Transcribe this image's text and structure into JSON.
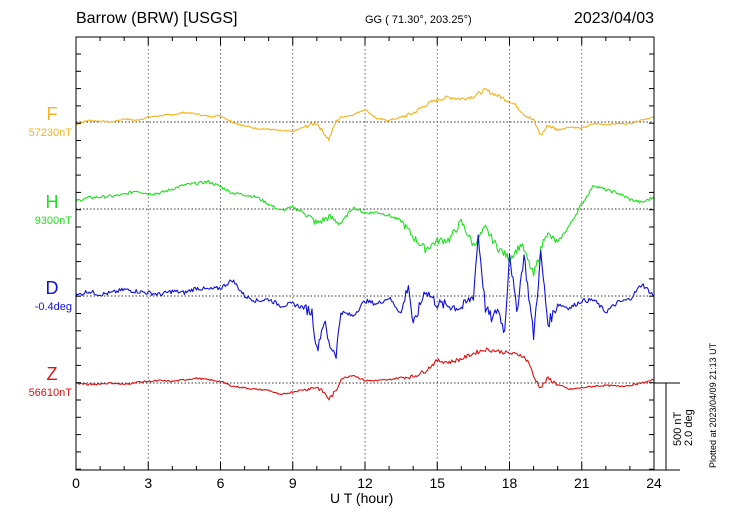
{
  "header": {
    "station": "Barrow (BRW)  [USGS]",
    "coords": "GG ( 71.30°, 203.25°)",
    "date": "2023/04/03"
  },
  "plotted_note": "Plotted at 2023/04/09 21:13 UT",
  "scale_bar": {
    "nT": "500 nT",
    "deg": "2.0 deg"
  },
  "chart_data": {
    "type": "line",
    "title": "Barrow (BRW)  [USGS]",
    "xlabel": "U T (hour)",
    "ylabel": "",
    "xlim": [
      0,
      24
    ],
    "x_ticks": [
      0,
      3,
      6,
      9,
      12,
      15,
      18,
      21,
      24
    ],
    "grid": true,
    "units": "nT",
    "series": [
      {
        "name": "F",
        "baseline_label": "57230nT",
        "color": "#f5b21c",
        "x": [
          0,
          0.5,
          1,
          1.5,
          2,
          2.5,
          3,
          3.5,
          4,
          4.5,
          5,
          5.5,
          6,
          6.5,
          7,
          7.5,
          8,
          8.5,
          9,
          9.5,
          10,
          10.3,
          10.5,
          10.8,
          11,
          11.5,
          12,
          12.5,
          13,
          13.5,
          14,
          14.5,
          15,
          15.5,
          16,
          16.5,
          17,
          17.5,
          18,
          18.3,
          18.6,
          19,
          19.3,
          19.6,
          20,
          20.5,
          21,
          21.5,
          22,
          22.5,
          23,
          23.5,
          24
        ],
        "y": [
          -30,
          20,
          10,
          0,
          40,
          20,
          60,
          80,
          90,
          120,
          100,
          70,
          80,
          0,
          -50,
          -80,
          -90,
          -110,
          -120,
          -60,
          -10,
          -140,
          -220,
          10,
          60,
          90,
          160,
          40,
          20,
          60,
          110,
          210,
          280,
          310,
          290,
          320,
          400,
          330,
          260,
          200,
          100,
          20,
          -170,
          -40,
          -100,
          -60,
          -80,
          -20,
          -30,
          -20,
          -20,
          30,
          60
        ]
      },
      {
        "name": "H",
        "baseline_label": "9300nT",
        "color": "#1de21d",
        "x": [
          0,
          0.5,
          1,
          1.5,
          2,
          2.5,
          3,
          3.5,
          4,
          4.5,
          5,
          5.5,
          6,
          6.5,
          7,
          7.5,
          8,
          8.5,
          9,
          9.5,
          10,
          10.5,
          11,
          11.5,
          12,
          12.5,
          13,
          13.5,
          14,
          14.5,
          15,
          15.5,
          16,
          16.5,
          17,
          17.5,
          18,
          18.5,
          19,
          19.5,
          20,
          20.5,
          21,
          21.5,
          22,
          22.5,
          23,
          23.5,
          24
        ],
        "y": [
          100,
          140,
          150,
          160,
          180,
          230,
          190,
          200,
          250,
          300,
          320,
          340,
          280,
          200,
          180,
          150,
          60,
          -20,
          20,
          -50,
          -180,
          -100,
          -180,
          20,
          -50,
          -40,
          -80,
          -150,
          -350,
          -500,
          -400,
          -380,
          -160,
          -450,
          -240,
          -480,
          -620,
          -440,
          -830,
          -300,
          -420,
          -200,
          60,
          300,
          240,
          200,
          120,
          80,
          150
        ]
      },
      {
        "name": "D",
        "baseline_label": "-0.4deg",
        "color": "#1010e0",
        "x": [
          0,
          0.5,
          1,
          1.5,
          2,
          2.5,
          3,
          3.5,
          4,
          4.5,
          5,
          5.5,
          6,
          6.5,
          7,
          7.5,
          8,
          8.5,
          9,
          9.5,
          9.8,
          10,
          10.3,
          10.5,
          10.8,
          11,
          11.5,
          12,
          12.5,
          13,
          13.5,
          13.8,
          14,
          14.5,
          15,
          15.5,
          16,
          16.5,
          16.7,
          17,
          17.3,
          17.5,
          17.8,
          18,
          18.3,
          18.6,
          19,
          19.3,
          19.6,
          20,
          20.5,
          21,
          21.5,
          22,
          22.5,
          23,
          23.5,
          24
        ],
        "y": [
          0,
          60,
          20,
          40,
          80,
          60,
          40,
          20,
          60,
          40,
          100,
          80,
          100,
          200,
          0,
          -60,
          -40,
          -120,
          -100,
          -150,
          -200,
          -680,
          -300,
          -600,
          -720,
          -200,
          -250,
          -60,
          -100,
          -20,
          -220,
          150,
          -380,
          80,
          -100,
          -120,
          -150,
          0,
          760,
          -150,
          -300,
          -150,
          -450,
          550,
          -200,
          510,
          -500,
          520,
          -350,
          -100,
          -150,
          -60,
          -50,
          -200,
          -80,
          -40,
          150,
          0
        ]
      },
      {
        "name": "Z",
        "baseline_label": "56610nT",
        "color": "#e01010",
        "x": [
          0,
          0.5,
          1,
          1.5,
          2,
          2.5,
          3,
          3.5,
          4,
          4.5,
          5,
          5.5,
          6,
          6.5,
          7,
          7.5,
          8,
          8.5,
          9,
          9.5,
          10,
          10.3,
          10.5,
          10.8,
          11,
          11.5,
          12,
          12.5,
          13,
          13.5,
          14,
          14.5,
          15,
          15.5,
          16,
          16.5,
          17,
          17.5,
          18,
          18.5,
          18.8,
          19,
          19.3,
          19.6,
          20,
          20.5,
          21,
          21.5,
          22,
          22.5,
          23,
          23.5,
          24
        ],
        "y": [
          0,
          -20,
          -10,
          0,
          -20,
          10,
          20,
          30,
          20,
          40,
          60,
          40,
          20,
          -40,
          -60,
          -80,
          -90,
          -150,
          -110,
          -80,
          -50,
          -120,
          -200,
          -100,
          50,
          100,
          30,
          30,
          40,
          70,
          80,
          150,
          280,
          260,
          300,
          370,
          420,
          400,
          370,
          350,
          260,
          80,
          -60,
          60,
          -20,
          -80,
          -60,
          -40,
          -30,
          -40,
          -30,
          0,
          40
        ]
      }
    ]
  }
}
